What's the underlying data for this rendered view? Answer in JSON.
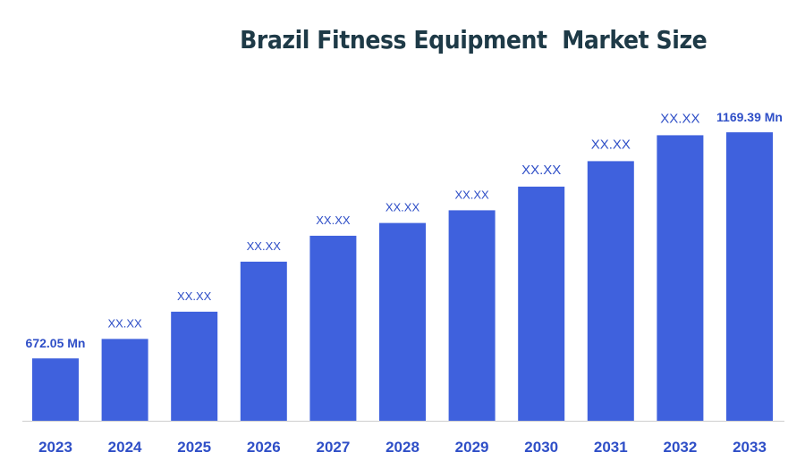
{
  "colors": {
    "bar": "#3f61dd",
    "label": "#2f4fc7",
    "tick": "#2f4fc7",
    "axis": "#cfcfcf",
    "title": "#1e3a47"
  },
  "chart_data": {
    "type": "bar",
    "title": "Brazil Fitness Equipment  Market Size",
    "xlabel": "",
    "ylabel": "",
    "grid": false,
    "legend": "none",
    "categories": [
      "2023",
      "2024",
      "2025",
      "2026",
      "2027",
      "2028",
      "2029",
      "2030",
      "2031",
      "2032",
      "2033"
    ],
    "values": [
      672.05,
      715,
      775,
      885,
      942,
      970,
      998,
      1050,
      1106,
      1163,
      1169.39
    ],
    "data_labels": [
      "672.05 Mn",
      "XX.XX",
      "XX.XX",
      "XX.XX",
      "XX.XX",
      "XX.XX",
      "XX.XX",
      "XX.XX",
      "XX.XX",
      "XX.XX",
      "1169.39 Mn"
    ],
    "ylim": [
      535,
      1205
    ]
  }
}
